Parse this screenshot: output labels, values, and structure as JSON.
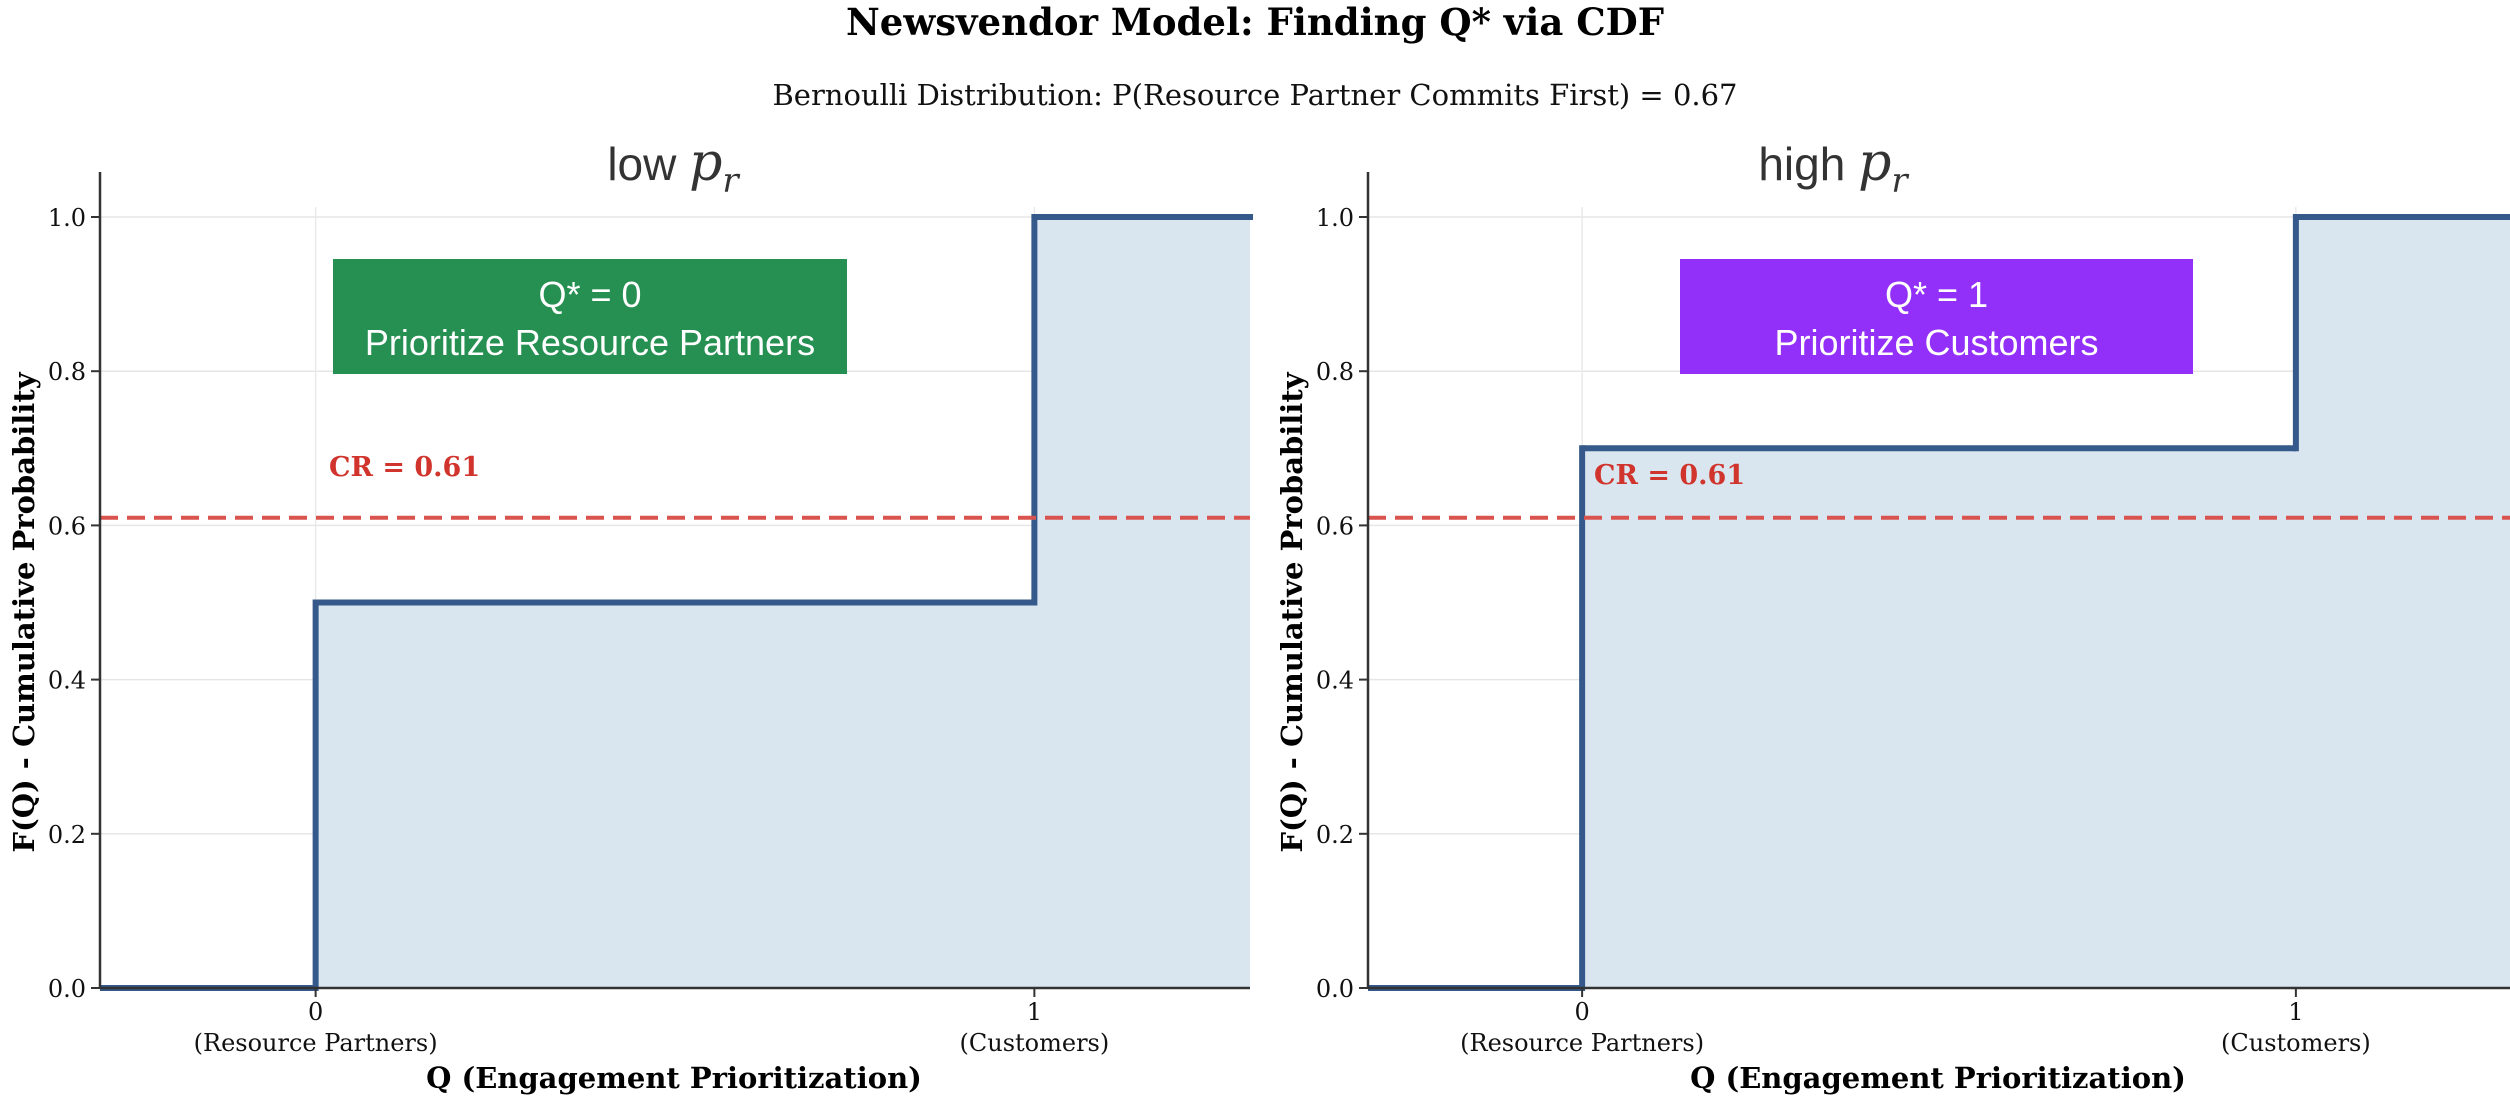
{
  "figure": {
    "title": "Newsvendor Model: Finding Q* via CDF",
    "subtitle": "Bernoulli Distribution: P(Resource Partner Commits First) = 0.67"
  },
  "colors": {
    "step_line": "#34598a",
    "fill": "#d9e6f0",
    "cr_line": "#d9534f",
    "cr_text": "#d0342c",
    "green_box": "#269052",
    "purple_box": "#9230fa",
    "axis": "#333333"
  },
  "chart_data": [
    {
      "type": "line",
      "step": "post",
      "title_text": "low ",
      "title_symbol": "p",
      "title_subscript": "r",
      "x": [
        -0.3,
        0,
        1,
        1.3
      ],
      "y": [
        0.0,
        0.5,
        1.0,
        1.0
      ],
      "xlim": [
        -0.3,
        1.3
      ],
      "ylim": [
        0.0,
        1.05
      ],
      "yticks": [
        "0.0",
        "0.2",
        "0.4",
        "0.6",
        "0.8",
        "1.0"
      ],
      "xticks": [
        "0",
        "1"
      ],
      "xtick_sublabels": [
        "(Resource Partners)",
        "(Customers)"
      ],
      "xlabel": "Q (Engagement Prioritization)",
      "ylabel": "F(Q) - Cumulative Probability",
      "critical_ratio": 0.61,
      "cr_label": "CR = 0.61",
      "annotation": {
        "line1": "Q* = 0",
        "line2": "Prioritize Resource Partners",
        "color": "green"
      },
      "grid": true
    },
    {
      "type": "line",
      "step": "post",
      "title_text": "high ",
      "title_symbol": "p",
      "title_subscript": "r",
      "x": [
        -0.3,
        0,
        1,
        1.3
      ],
      "y": [
        0.0,
        0.7,
        1.0,
        1.0
      ],
      "xlim": [
        -0.3,
        1.3
      ],
      "ylim": [
        0.0,
        1.05
      ],
      "yticks": [
        "0.0",
        "0.2",
        "0.4",
        "0.6",
        "0.8",
        "1.0"
      ],
      "xticks": [
        "0",
        "1"
      ],
      "xtick_sublabels": [
        "(Resource Partners)",
        "(Customers)"
      ],
      "xlabel": "Q (Engagement Prioritization)",
      "ylabel": "F(Q) - Cumulative Probability",
      "critical_ratio": 0.61,
      "cr_label": "CR = 0.61",
      "annotation": {
        "line1": "Q* = 1",
        "line2": "Prioritize Customers",
        "color": "purple"
      },
      "grid": true
    }
  ]
}
